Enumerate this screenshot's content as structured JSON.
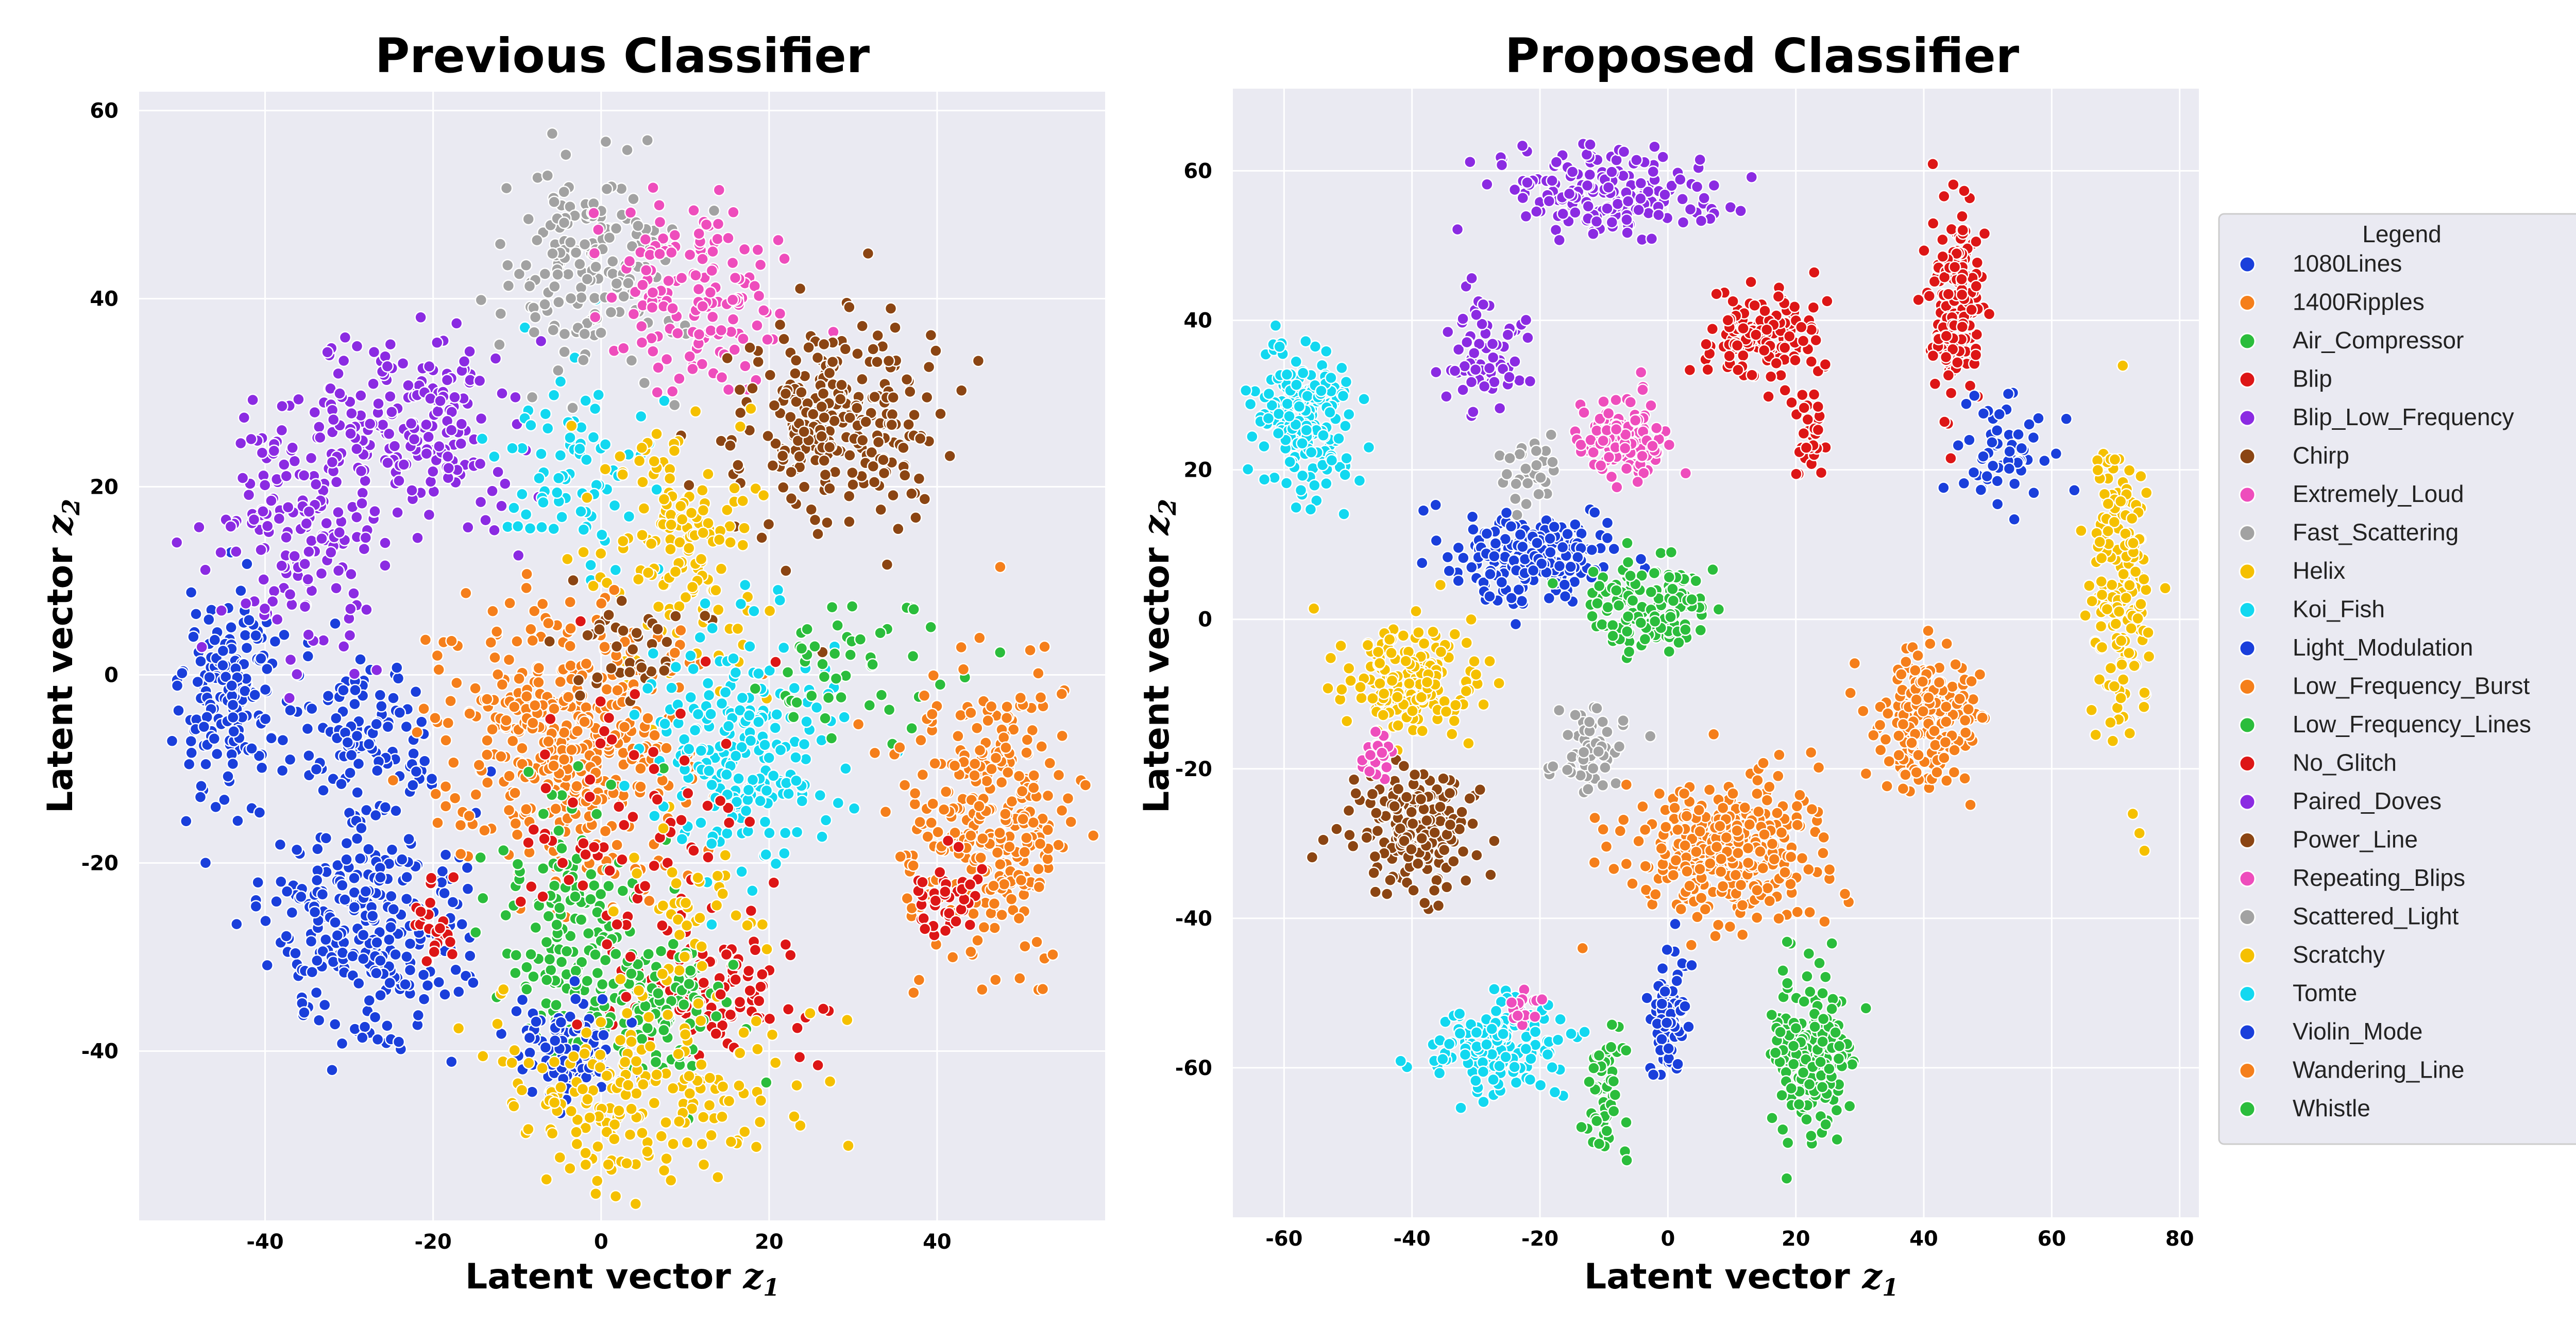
{
  "chart_data": [
    {
      "type": "scatter",
      "title": "Previous Classifier",
      "xlabel": "Latent vector",
      "xlabel_var": "z",
      "xlabel_sub": "1",
      "ylabel": "Latent vector",
      "ylabel_var": "z",
      "ylabel_sub": "2",
      "xlim": [
        -55,
        60
      ],
      "ylim": [
        -58,
        62
      ],
      "xticks": [
        -40,
        -20,
        0,
        20,
        40
      ],
      "yticks": [
        -40,
        -20,
        0,
        20,
        40,
        60
      ],
      "grid": true,
      "clusters": [
        {
          "cls": "1080Lines",
          "cx": -44,
          "cy": -3,
          "sx": 3,
          "sy": 6,
          "n": 170
        },
        {
          "cls": "Violin_Mode",
          "cx": -28,
          "cy": -7,
          "sx": 4,
          "sy": 4,
          "n": 110
        },
        {
          "cls": "Light_Modulation",
          "cx": -28,
          "cy": -27,
          "sx": 6,
          "sy": 6,
          "n": 280
        },
        {
          "cls": "No_Glitch",
          "cx": -20,
          "cy": -26,
          "sx": 1.5,
          "sy": 3,
          "n": 25
        },
        {
          "cls": "Blip_Low_Frequency",
          "cx": -36,
          "cy": 15,
          "sx": 5,
          "sy": 6,
          "n": 170
        },
        {
          "cls": "Paired_Doves",
          "cx": -22,
          "cy": 27,
          "sx": 6,
          "sy": 5,
          "n": 200
        },
        {
          "cls": "Koi_Fish",
          "cx": -2,
          "cy": 23,
          "sx": 5,
          "sy": 6,
          "n": 80
        },
        {
          "cls": "Fast_Scattering",
          "cx": -2,
          "cy": 44,
          "sx": 5,
          "sy": 6,
          "n": 170
        },
        {
          "cls": "Extremely_Loud",
          "cx": 11,
          "cy": 41,
          "sx": 5,
          "sy": 5,
          "n": 150
        },
        {
          "cls": "Chirp",
          "cx": 28,
          "cy": 27,
          "sx": 6,
          "sy": 6,
          "n": 270
        },
        {
          "cls": "Helix",
          "cx": 10,
          "cy": 14,
          "sx": 5,
          "sy": 7,
          "n": 150
        },
        {
          "cls": "1400Ripples",
          "cx": -4,
          "cy": -7,
          "sx": 7,
          "sy": 7,
          "n": 420
        },
        {
          "cls": "Power_Line",
          "cx": 4,
          "cy": 3,
          "sx": 4,
          "sy": 3,
          "n": 40
        },
        {
          "cls": "Tomte",
          "cx": 17,
          "cy": -8,
          "sx": 6,
          "sy": 6,
          "n": 220
        },
        {
          "cls": "Whistle",
          "cx": 30,
          "cy": 1,
          "sx": 6,
          "sy": 4,
          "n": 50
        },
        {
          "cls": "Wandering_Line",
          "cx": 46,
          "cy": -15,
          "sx": 5,
          "sy": 7,
          "n": 330
        },
        {
          "cls": "Blip",
          "cx": 41,
          "cy": -24,
          "sx": 2,
          "sy": 2,
          "n": 40
        },
        {
          "cls": "No_Glitch",
          "cx": 13,
          "cy": -34,
          "sx": 5,
          "sy": 4,
          "n": 110
        },
        {
          "cls": "Low_Frequency_Lines",
          "cx": -4,
          "cy": -27,
          "sx": 5,
          "sy": 6,
          "n": 150
        },
        {
          "cls": "Whistle",
          "cx": 6,
          "cy": -36,
          "sx": 4,
          "sy": 4,
          "n": 120
        },
        {
          "cls": "1080Lines",
          "cx": -3,
          "cy": -40,
          "sx": 3,
          "sy": 3,
          "n": 90
        },
        {
          "cls": "Scratchy",
          "cx": 4,
          "cy": -44,
          "sx": 9,
          "sy": 5,
          "n": 200
        },
        {
          "cls": "Blip",
          "cx": 4,
          "cy": -18,
          "sx": 7,
          "sy": 8,
          "n": 80
        },
        {
          "cls": "Scratchy",
          "cx": 10,
          "cy": -25,
          "sx": 4,
          "sy": 4,
          "n": 40
        }
      ]
    },
    {
      "type": "scatter",
      "title": "Proposed Classifier",
      "xlabel": "Latent vector",
      "xlabel_var": "z",
      "xlabel_sub": "1",
      "ylabel": "Latent vector",
      "ylabel_var": "z",
      "ylabel_sub": "2",
      "xlim": [
        -68,
        83
      ],
      "ylim": [
        -80,
        71
      ],
      "xticks": [
        -60,
        -40,
        -20,
        0,
        20,
        40,
        60,
        80
      ],
      "yticks": [
        -60,
        -40,
        -20,
        0,
        20,
        40,
        60
      ],
      "grid": true,
      "clusters": [
        {
          "cls": "Paired_Doves",
          "cx": -8,
          "cy": 57,
          "sx": 9,
          "sy": 3,
          "n": 180
        },
        {
          "cls": "Blip_Low_Frequency",
          "cx": -29,
          "cy": 36,
          "sx": 3,
          "sy": 4,
          "n": 70
        },
        {
          "cls": "Tomte",
          "cx": -57,
          "cy": 27,
          "sx": 4,
          "sy": 5,
          "n": 200
        },
        {
          "cls": "Blip",
          "cx": 15,
          "cy": 38,
          "sx": 5,
          "sy": 3,
          "n": 140
        },
        {
          "cls": "Blip",
          "cx": 22,
          "cy": 24,
          "sx": 1.2,
          "sy": 3,
          "n": 30
        },
        {
          "cls": "No_Glitch",
          "cx": 45,
          "cy": 43,
          "sx": 2,
          "sy": 6,
          "n": 190
        },
        {
          "cls": "Extremely_Loud",
          "cx": -7,
          "cy": 24,
          "sx": 3.5,
          "sy": 2.5,
          "n": 150
        },
        {
          "cls": "Scattered_Light",
          "cx": -22,
          "cy": 20,
          "sx": 2,
          "sy": 2,
          "n": 30
        },
        {
          "cls": "Light_Modulation",
          "cx": -22,
          "cy": 8,
          "sx": 6,
          "sy": 3,
          "n": 200
        },
        {
          "cls": "Whistle",
          "cx": -3,
          "cy": 2,
          "sx": 5,
          "sy": 3,
          "n": 140
        },
        {
          "cls": "1080Lines",
          "cx": 52,
          "cy": 22,
          "sx": 4,
          "sy": 4,
          "n": 60
        },
        {
          "cls": "Scratchy",
          "cx": 71,
          "cy": 6,
          "sx": 2.5,
          "sy": 10,
          "n": 180
        },
        {
          "cls": "Low_Frequency_Burst",
          "cx": 40,
          "cy": -13,
          "sx": 4,
          "sy": 5,
          "n": 190
        },
        {
          "cls": "Helix",
          "cx": -40,
          "cy": -8,
          "sx": 5,
          "sy": 3.5,
          "n": 200
        },
        {
          "cls": "Power_Line",
          "cx": -39,
          "cy": -28,
          "sx": 5,
          "sy": 4,
          "n": 180
        },
        {
          "cls": "Repeating_Blips",
          "cx": -45,
          "cy": -18,
          "sx": 1.5,
          "sy": 2,
          "n": 20
        },
        {
          "cls": "Scattered_Light",
          "cx": -12,
          "cy": -18,
          "sx": 3,
          "sy": 3,
          "n": 60
        },
        {
          "cls": "1400Ripples",
          "cx": 8,
          "cy": -31,
          "sx": 8,
          "sy": 5,
          "n": 320
        },
        {
          "cls": "Low_Frequency_Lines",
          "cx": 22,
          "cy": -58,
          "sx": 3,
          "sy": 5,
          "n": 200
        },
        {
          "cls": "Violin_Mode",
          "cx": 0,
          "cy": -53,
          "sx": 1.5,
          "sy": 4,
          "n": 80
        },
        {
          "cls": "Koi_Fish",
          "cx": -27,
          "cy": -57,
          "sx": 5,
          "sy": 3,
          "n": 150
        },
        {
          "cls": "Whistle",
          "cx": -10,
          "cy": -65,
          "sx": 1.5,
          "sy": 5,
          "n": 60
        },
        {
          "cls": "Repeating_Blips",
          "cx": -22,
          "cy": -52,
          "sx": 1.5,
          "sy": 1.5,
          "n": 15
        }
      ]
    }
  ],
  "legend": {
    "title": "Legend",
    "items": [
      {
        "label": "1080Lines",
        "color": "#1a3fdb"
      },
      {
        "label": "1400Ripples",
        "color": "#f57f1b"
      },
      {
        "label": "Air_Compressor",
        "color": "#2bbd3c"
      },
      {
        "label": "Blip",
        "color": "#dd1616"
      },
      {
        "label": "Blip_Low_Frequency",
        "color": "#8b2be2"
      },
      {
        "label": "Chirp",
        "color": "#8b4513"
      },
      {
        "label": "Extremely_Loud",
        "color": "#ee4dbc"
      },
      {
        "label": "Fast_Scattering",
        "color": "#a2a2a2"
      },
      {
        "label": "Helix",
        "color": "#f5c000"
      },
      {
        "label": "Koi_Fish",
        "color": "#12d8f0"
      },
      {
        "label": "Light_Modulation",
        "color": "#1a3fdb"
      },
      {
        "label": "Low_Frequency_Burst",
        "color": "#f57f1b"
      },
      {
        "label": "Low_Frequency_Lines",
        "color": "#2bbd3c"
      },
      {
        "label": "No_Glitch",
        "color": "#dd1616"
      },
      {
        "label": "Paired_Doves",
        "color": "#8b2be2"
      },
      {
        "label": "Power_Line",
        "color": "#8b4513"
      },
      {
        "label": "Repeating_Blips",
        "color": "#ee4dbc"
      },
      {
        "label": "Scattered_Light",
        "color": "#a2a2a2"
      },
      {
        "label": "Scratchy",
        "color": "#f5c000"
      },
      {
        "label": "Tomte",
        "color": "#12d8f0"
      },
      {
        "label": "Violin_Mode",
        "color": "#1a3fdb"
      },
      {
        "label": "Wandering_Line",
        "color": "#f57f1b"
      },
      {
        "label": "Whistle",
        "color": "#2bbd3c"
      }
    ]
  },
  "colors": {
    "plot_background": "#eaeaf2",
    "grid": "#ffffff",
    "legend_background": "#eaeaf2",
    "legend_border": "#cccccc"
  }
}
